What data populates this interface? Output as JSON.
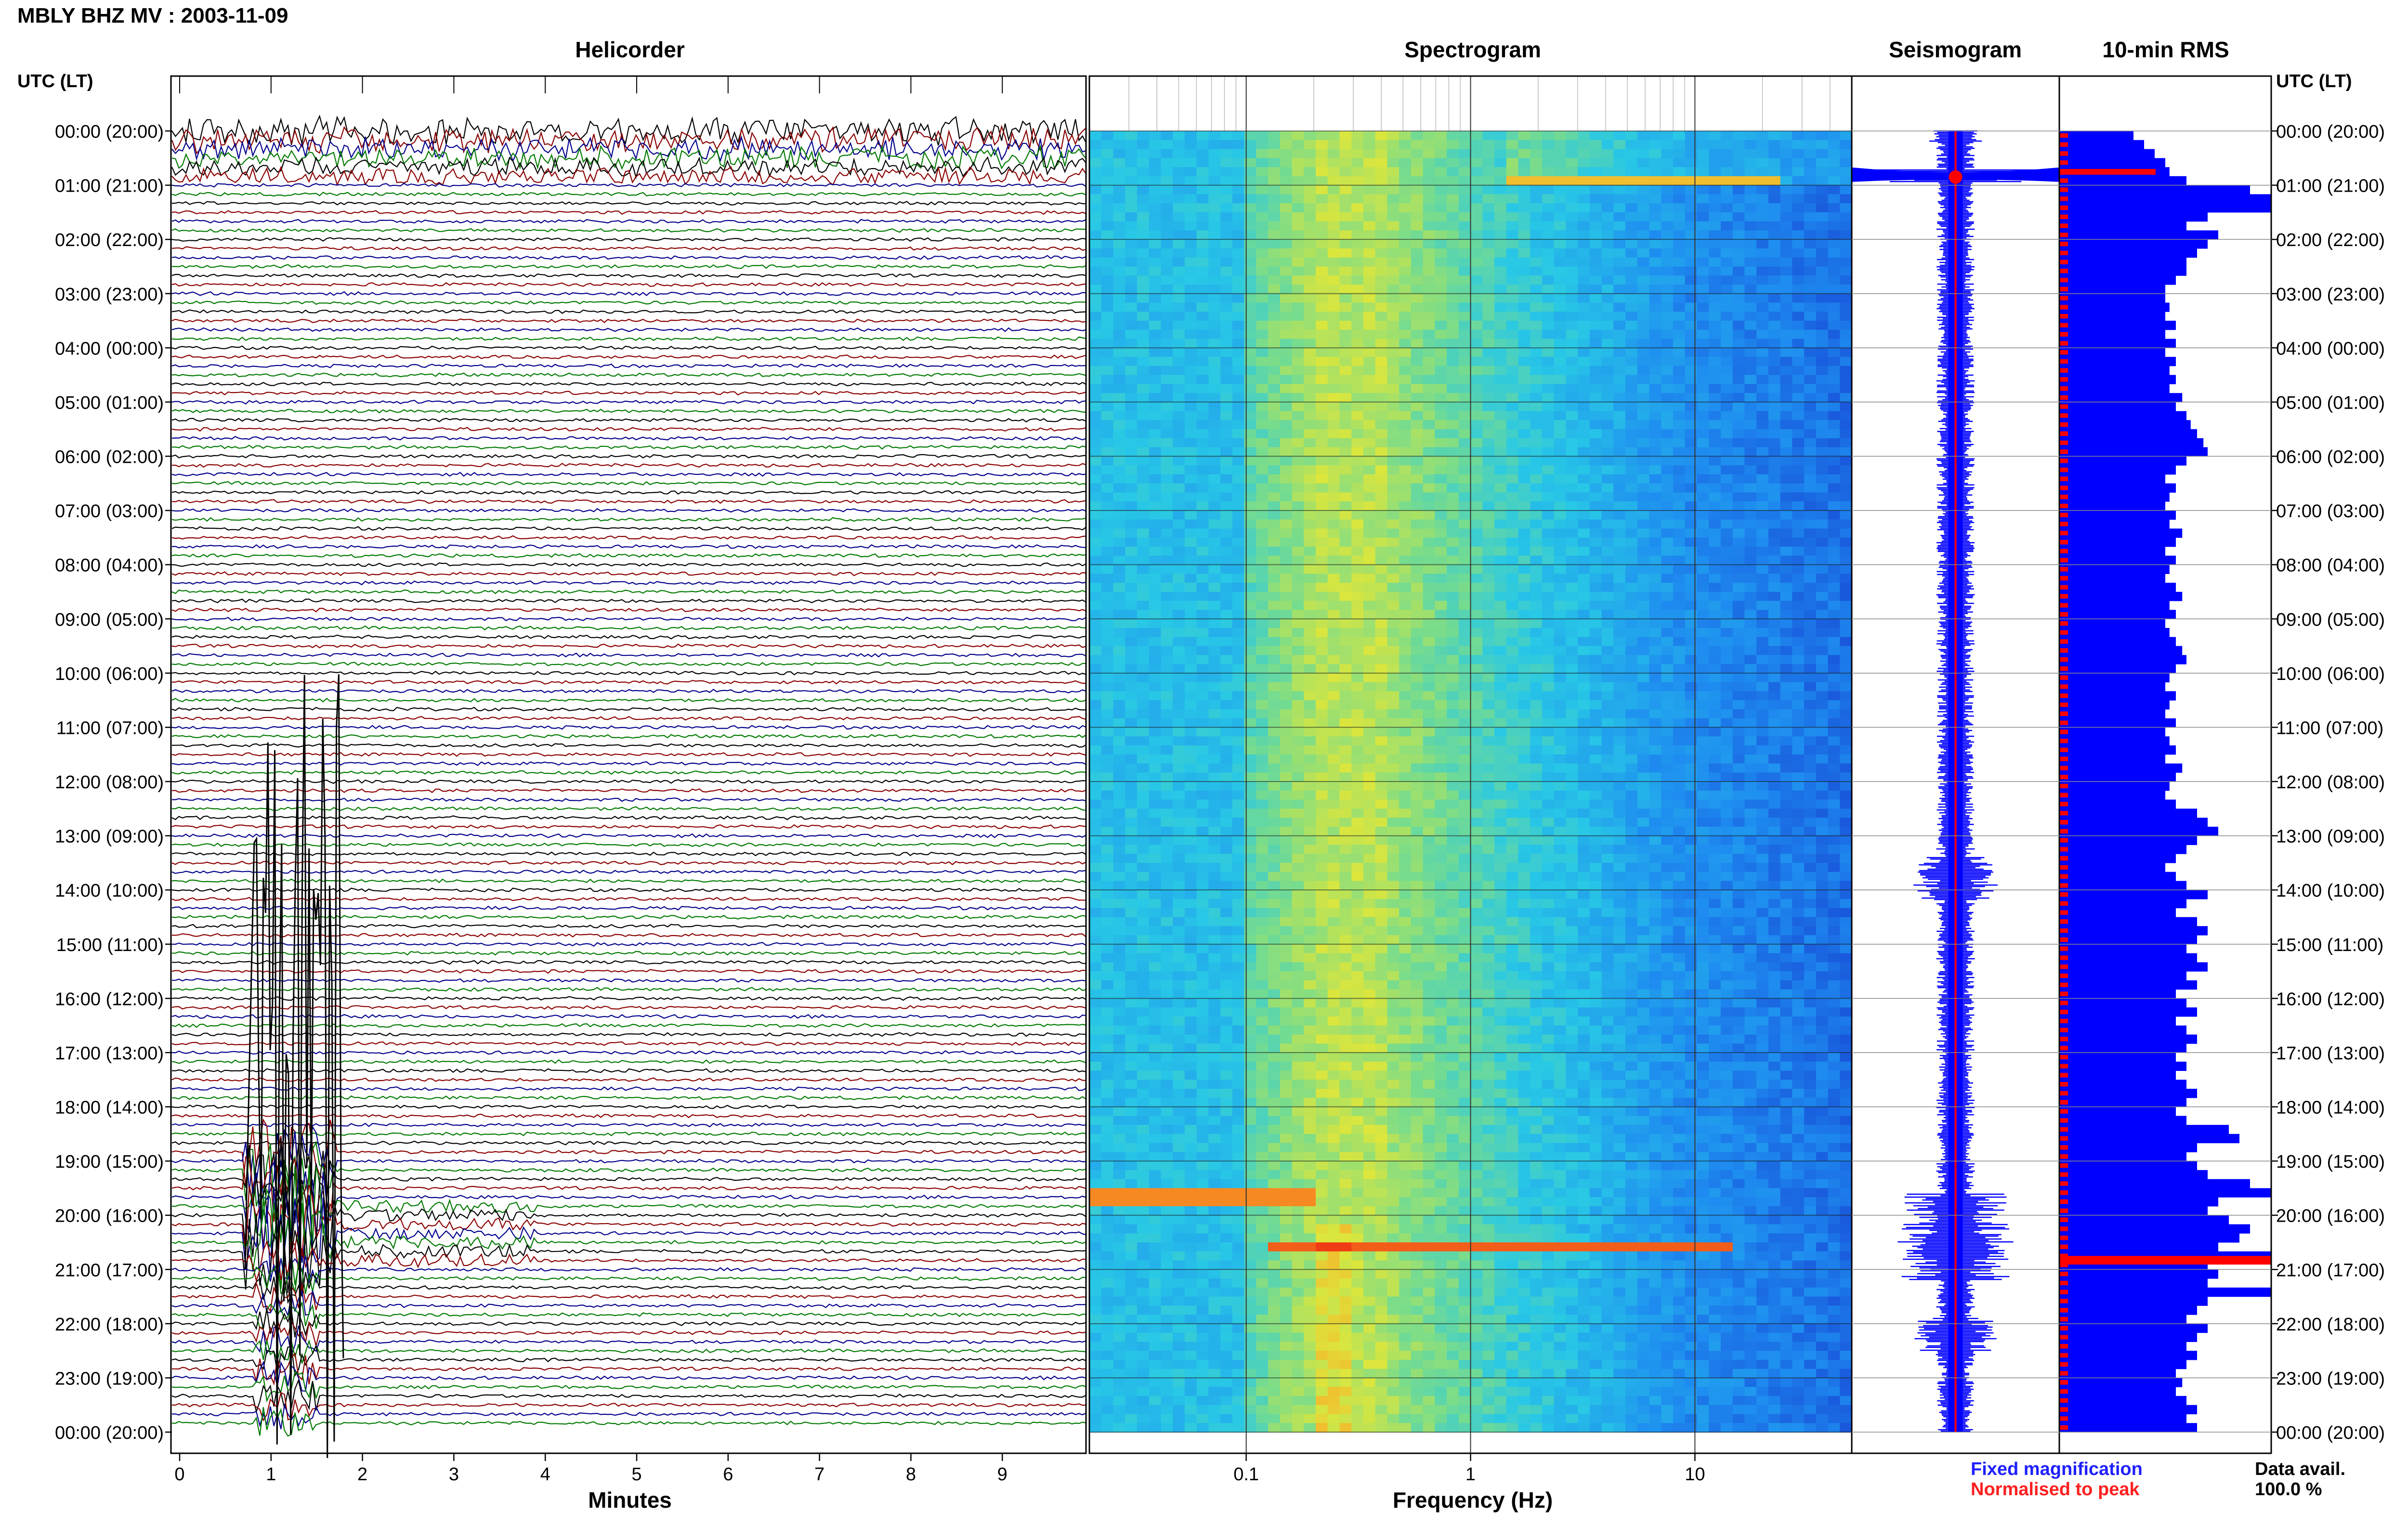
{
  "header": {
    "title": "MBLY BHZ MV : 2003-11-09"
  },
  "panels": {
    "helicorder": "Helicorder",
    "spectrogram": "Spectrogram",
    "seismogram": "Seismogram",
    "rms": "10-min RMS"
  },
  "axes": {
    "utc_header_left": "UTC (LT)",
    "utc_header_right": "UTC (LT)",
    "minutes_label": "Minutes",
    "frequency_label": "Frequency (Hz)"
  },
  "legend": {
    "fixed": "Fixed magnification",
    "normalised": "Normalised to peak",
    "fixed_color": "#1f1fff",
    "normalised_color": "#ff1f1f"
  },
  "availability": {
    "label": "Data avail.",
    "value": "100.0 %"
  },
  "colors": {
    "trace_black": "#000000",
    "trace_red": "#8b0000",
    "trace_blue": "#00008b",
    "trace_green": "#007a00",
    "bar_blue": "#0000ff",
    "peak_red": "#ff0000"
  },
  "chart_data": {
    "type": "heatmap",
    "time_ticks": [
      "00:00 (20:00)",
      "01:00 (21:00)",
      "02:00 (22:00)",
      "03:00 (23:00)",
      "04:00 (00:00)",
      "05:00 (01:00)",
      "06:00 (02:00)",
      "07:00 (03:00)",
      "08:00 (04:00)",
      "09:00 (05:00)",
      "10:00 (06:00)",
      "11:00 (07:00)",
      "12:00 (08:00)",
      "13:00 (09:00)",
      "14:00 (10:00)",
      "15:00 (11:00)",
      "16:00 (12:00)",
      "17:00 (13:00)",
      "18:00 (14:00)",
      "19:00 (15:00)",
      "20:00 (16:00)",
      "21:00 (17:00)",
      "22:00 (18:00)",
      "23:00 (19:00)",
      "00:00 (20:00)"
    ],
    "minutes_ticks": [
      "0",
      "1",
      "2",
      "3",
      "4",
      "5",
      "6",
      "7",
      "8",
      "9"
    ],
    "minutes_range": [
      0,
      10
    ],
    "frequency_ticks": [
      "0.1",
      "1",
      "10"
    ],
    "frequency_range": [
      0.02,
      50
    ],
    "frequency_scale": "log",
    "helicorder_rows": 144,
    "helicorder_colors": [
      "black",
      "red",
      "blue",
      "green"
    ],
    "rms_10min": [
      3.5,
      4.0,
      4.5,
      5.0,
      5.2,
      6.0,
      9.0,
      10.0,
      10.0,
      7.0,
      6.0,
      7.5,
      7.0,
      6.5,
      6.0,
      6.0,
      5.5,
      5.0,
      5.0,
      5.2,
      5.0,
      5.5,
      5.0,
      5.5,
      5.0,
      5.5,
      5.2,
      5.5,
      5.2,
      5.8,
      5.5,
      6.0,
      6.2,
      6.5,
      6.8,
      7.0,
      6.0,
      5.5,
      5.0,
      5.5,
      5.2,
      5.0,
      5.5,
      5.2,
      5.8,
      5.5,
      5.0,
      5.5,
      5.2,
      5.0,
      5.5,
      5.8,
      5.2,
      5.5,
      5.0,
      5.2,
      5.5,
      5.8,
      6.0,
      5.5,
      5.2,
      5.0,
      5.5,
      5.2,
      5.0,
      5.5,
      5.0,
      5.2,
      5.5,
      5.0,
      5.8,
      5.5,
      5.2,
      5.0,
      5.5,
      6.5,
      7.0,
      7.5,
      6.5,
      6.0,
      5.5,
      5.0,
      5.5,
      6.0,
      7.0,
      6.0,
      5.5,
      6.5,
      7.0,
      6.5,
      6.0,
      6.5,
      7.0,
      6.0,
      6.5,
      5.5,
      6.0,
      6.5,
      5.5,
      6.0,
      6.5,
      6.0,
      5.5,
      6.0,
      5.5,
      6.0,
      6.5,
      6.0,
      5.5,
      6.0,
      8.0,
      8.5,
      6.5,
      6.0,
      6.5,
      7.0,
      9.0,
      10.0,
      7.5,
      7.0,
      8.0,
      9.0,
      8.5,
      7.5,
      10.0,
      7.0,
      7.5,
      7.0,
      10.0,
      7.0,
      6.5,
      6.0,
      7.0,
      6.5,
      6.0,
      6.5,
      6.0,
      5.5,
      5.8,
      5.5,
      6.0,
      6.5,
      6.0,
      6.5
    ],
    "rms_max": 10,
    "events": [
      {
        "time": "01:00",
        "note": "high-frequency burst"
      },
      {
        "time": "20:00",
        "note": "low-frequency signal"
      },
      {
        "time": "20:45",
        "note": "high-amplitude signal"
      }
    ]
  }
}
